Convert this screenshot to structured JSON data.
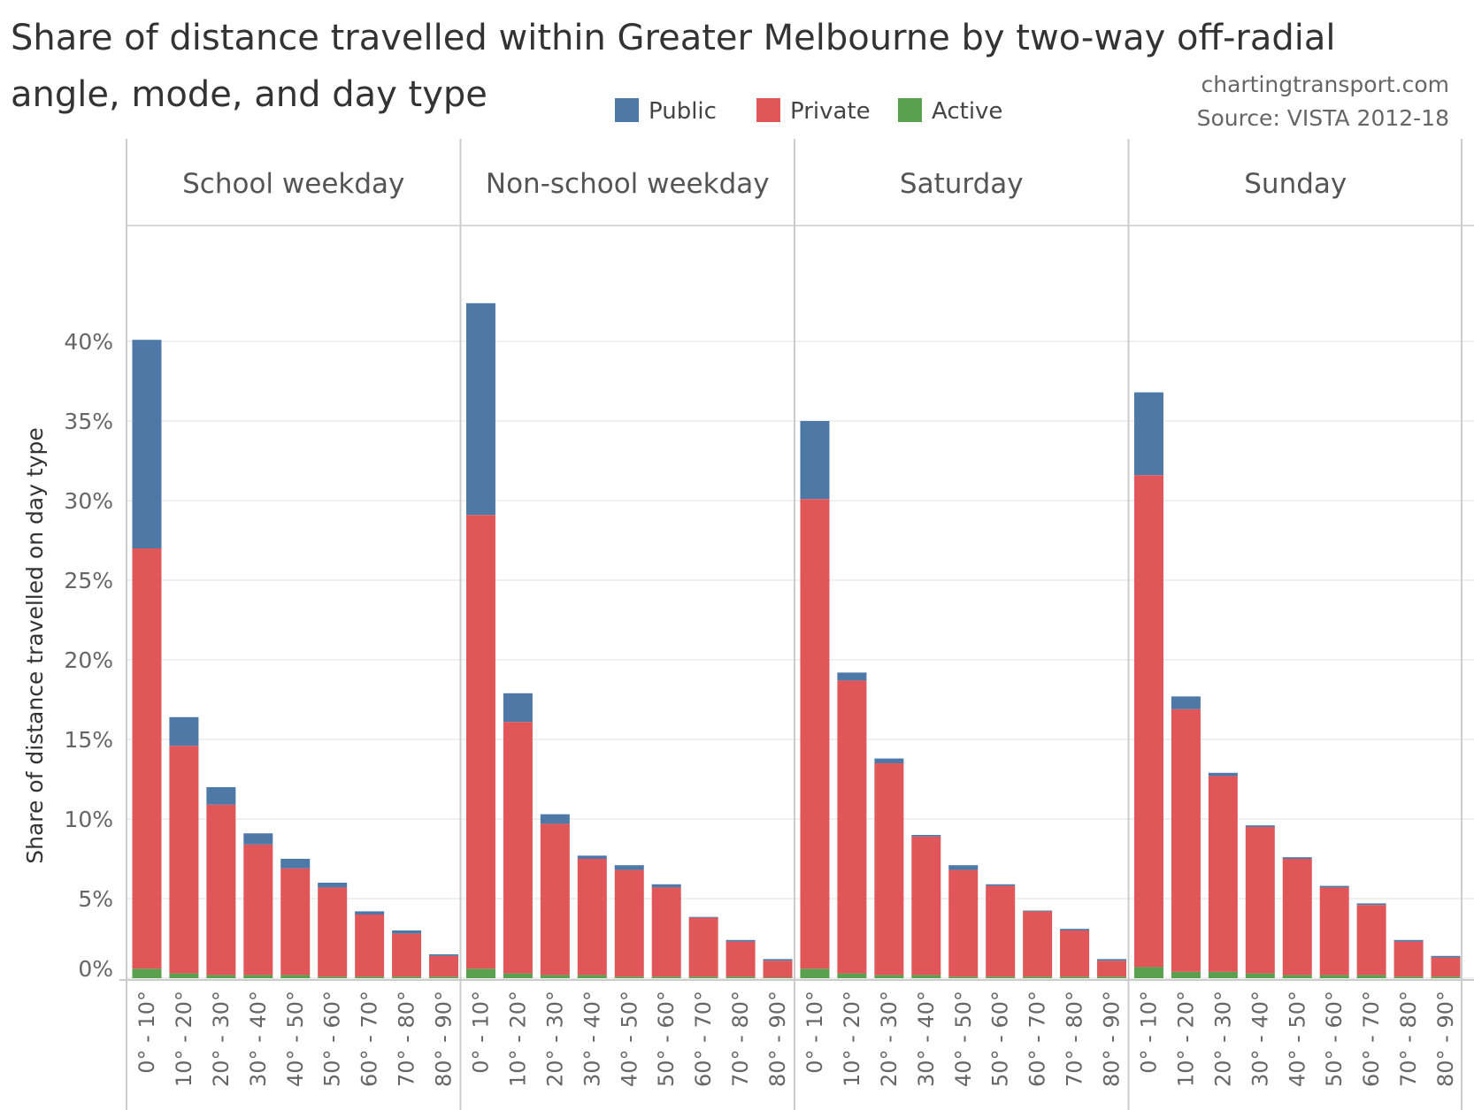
{
  "chart_data": {
    "type": "bar",
    "stacked": true,
    "title": "Share of distance travelled within Greater Melbourne by two-way off-radial angle, mode, and day type",
    "credit": "chartingtransport.com",
    "source": "Source: VISTA 2012-18",
    "ylabel": "Share of distance travelled on day type",
    "ylim": [
      0,
      45
    ],
    "yticks": [
      "0%",
      "5%",
      "10%",
      "15%",
      "20%",
      "25%",
      "30%",
      "35%",
      "40%"
    ],
    "grid": true,
    "legend_placement": "top",
    "legend": [
      {
        "name": "Public",
        "color": "#4e79a7"
      },
      {
        "name": "Private",
        "color": "#e15759"
      },
      {
        "name": "Active",
        "color": "#59a14f"
      }
    ],
    "categories": [
      "0° - 10°",
      "10° - 20°",
      "20° - 30°",
      "30° - 40°",
      "40° - 50°",
      "50° - 60°",
      "60° - 70°",
      "70° - 80°",
      "80° - 90°"
    ],
    "panels": [
      {
        "name": "School weekday",
        "active": [
          0.6,
          0.3,
          0.2,
          0.2,
          0.2,
          0.1,
          0.1,
          0.1,
          0.1
        ],
        "private": [
          26.4,
          14.3,
          10.7,
          8.2,
          6.7,
          5.6,
          3.9,
          2.7,
          1.3
        ],
        "public": [
          13.1,
          1.8,
          1.1,
          0.7,
          0.6,
          0.3,
          0.2,
          0.2,
          0.1
        ]
      },
      {
        "name": "Non-school weekday",
        "active": [
          0.6,
          0.3,
          0.2,
          0.2,
          0.1,
          0.1,
          0.1,
          0.1,
          0.05
        ],
        "private": [
          28.5,
          15.8,
          9.5,
          7.3,
          6.7,
          5.6,
          3.7,
          2.2,
          1.05
        ],
        "public": [
          13.3,
          1.8,
          0.6,
          0.2,
          0.3,
          0.2,
          0.05,
          0.1,
          0.1
        ]
      },
      {
        "name": "Saturday",
        "active": [
          0.6,
          0.3,
          0.2,
          0.2,
          0.1,
          0.1,
          0.1,
          0.1,
          0.1
        ],
        "private": [
          29.5,
          18.4,
          13.3,
          8.7,
          6.7,
          5.7,
          4.1,
          2.9,
          1.0
        ],
        "public": [
          4.9,
          0.5,
          0.3,
          0.1,
          0.3,
          0.1,
          0.05,
          0.1,
          0.1
        ]
      },
      {
        "name": "Sunday",
        "active": [
          0.7,
          0.4,
          0.4,
          0.3,
          0.2,
          0.2,
          0.2,
          0.1,
          0.1
        ],
        "private": [
          30.9,
          16.5,
          12.3,
          9.2,
          7.3,
          5.5,
          4.4,
          2.2,
          1.2
        ],
        "public": [
          5.2,
          0.8,
          0.2,
          0.1,
          0.1,
          0.1,
          0.1,
          0.1,
          0.1
        ]
      }
    ]
  }
}
